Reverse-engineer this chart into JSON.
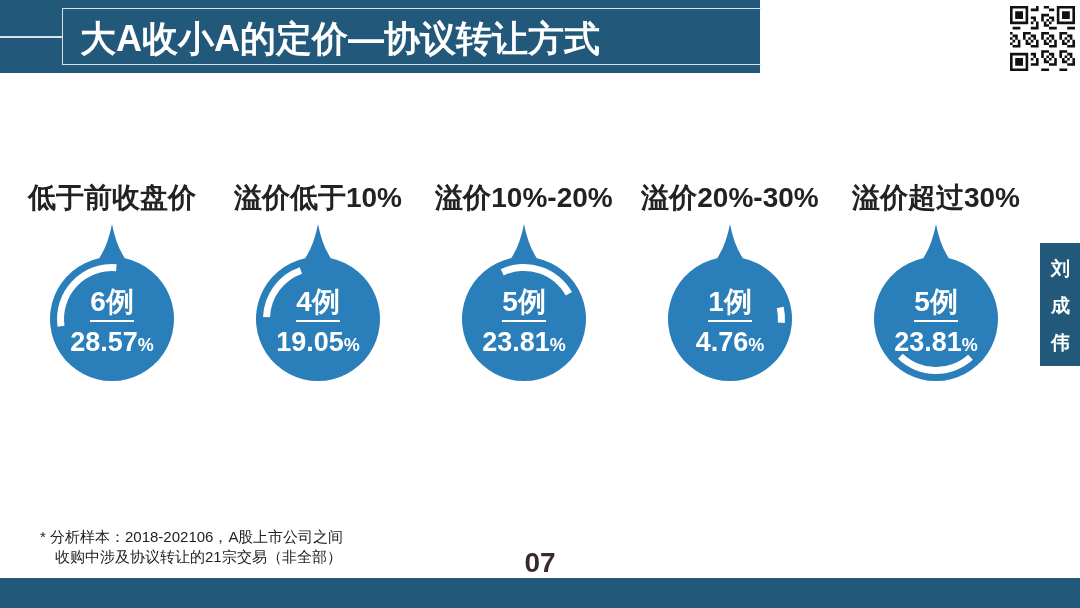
{
  "chart_data": {
    "type": "other",
    "title": "大A收小A的定价—协议转让方式",
    "categories": [
      "低于前收盘价",
      "溢价低于10%",
      "溢价10%-20%",
      "溢价20%-30%",
      "溢价超过30%"
    ],
    "series": [
      {
        "color": "#2a7fba",
        "values": [
          6,
          4,
          5,
          1,
          5
        ],
        "value_labels": [
          "6例",
          "4例",
          "5例",
          "1例",
          "5例"
        ]
      },
      {
        "color": "#ffffff",
        "values": [
          28.57,
          19.05,
          23.81,
          4.76,
          23.81
        ],
        "value_labels": [
          "28.57%",
          "19.05%",
          "23.81%",
          "4.76%",
          "23.81%"
        ]
      }
    ],
    "annotations": [
      "* 分析样本：2018-202106，A股上市公司之间",
      "收购中涉及协议转让的21宗交易（非全部）",
      "07",
      "刘成伟"
    ]
  }
}
